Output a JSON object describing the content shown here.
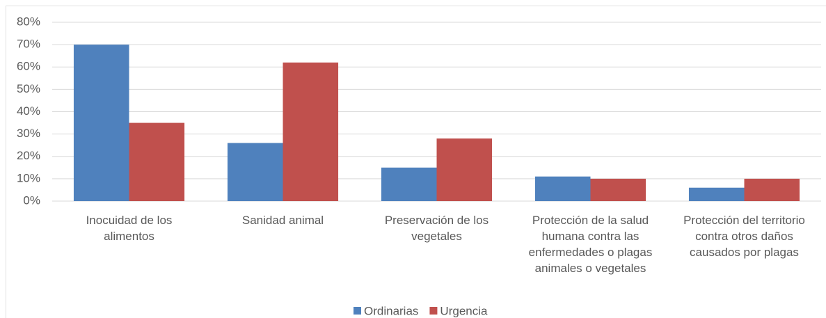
{
  "chart_data": {
    "type": "bar",
    "categories": [
      "Inocuidad de los alimentos",
      "Sanidad animal",
      "Preservación de los vegetales",
      "Protección de la salud humana contra las enfermedades o plagas animales o vegetales",
      "Protección del territorio contra otros daños causados por plagas"
    ],
    "series": [
      {
        "name": "Ordinarias",
        "color": "#4f81bd",
        "values": [
          70,
          26,
          15,
          11,
          6
        ]
      },
      {
        "name": "Urgencia",
        "color": "#c0504d",
        "values": [
          35,
          62,
          28,
          10,
          10
        ]
      }
    ],
    "ylim": [
      0,
      80
    ],
    "yticks": [
      {
        "value": 0,
        "label": "0%"
      },
      {
        "value": 10,
        "label": "10%"
      },
      {
        "value": 20,
        "label": "20%"
      },
      {
        "value": 30,
        "label": "30%"
      },
      {
        "value": 40,
        "label": "40%"
      },
      {
        "value": 50,
        "label": "50%"
      },
      {
        "value": 60,
        "label": "60%"
      },
      {
        "value": 70,
        "label": "70%"
      },
      {
        "value": 80,
        "label": "80%"
      }
    ],
    "grid": true,
    "legend": "bottom"
  }
}
